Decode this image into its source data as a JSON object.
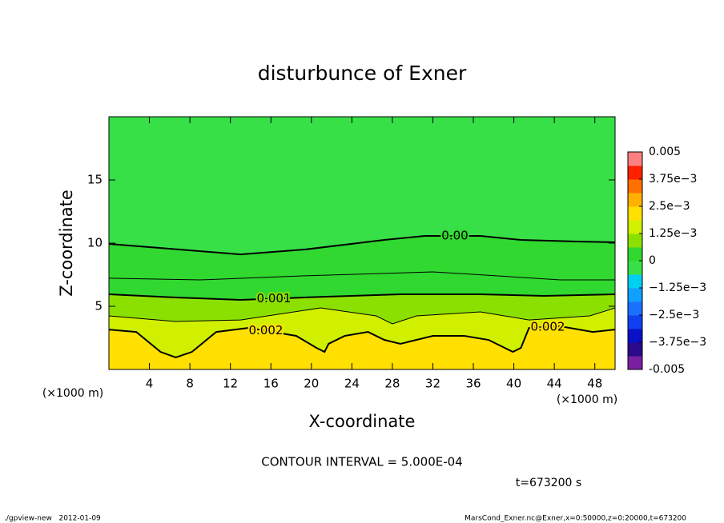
{
  "chart_data": {
    "type": "contour",
    "title": "disturbunce of Exner",
    "xlabel": "X-coordinate",
    "ylabel": "Z-coordinate",
    "x_unit": "(×1000 m)",
    "y_unit": "(×1000 m)",
    "xlim": [
      0,
      50
    ],
    "ylim": [
      0,
      20
    ],
    "xticks": [
      4,
      8,
      12,
      16,
      20,
      24,
      28,
      32,
      36,
      40,
      44,
      48
    ],
    "yticks": [
      5,
      10,
      15
    ],
    "contours": [
      {
        "level": 0,
        "label": "0.00",
        "x": [
          0,
          5,
          13,
          19.3,
          27.2,
          31.2,
          36.7,
          40.7,
          46.2,
          50
        ],
        "y": [
          9.94,
          9.62,
          9.11,
          9.49,
          10.25,
          10.57,
          10.57,
          10.25,
          10.13,
          10.06
        ]
      },
      {
        "level": 0.0005,
        "x": [
          0,
          9,
          19.3,
          32,
          38.3,
          44.6,
          50
        ],
        "y": [
          7.22,
          7.09,
          7.41,
          7.72,
          7.41,
          7.09,
          7.09
        ]
      },
      {
        "level": 0.001,
        "label": "0.001",
        "x": [
          0,
          6.6,
          13,
          19.3,
          28.8,
          36.7,
          43,
          50
        ],
        "y": [
          5.95,
          5.7,
          5.51,
          5.7,
          5.95,
          5.95,
          5.82,
          5.95
        ]
      },
      {
        "level": 0.0015,
        "x": [
          0,
          6.6,
          13,
          20.9,
          26.4,
          28,
          30.4,
          36.7,
          41.5,
          47.5,
          50
        ],
        "y": [
          4.24,
          3.8,
          3.92,
          4.87,
          4.24,
          3.61,
          4.24,
          4.56,
          3.92,
          4.24,
          4.87
        ]
      },
      {
        "level": 0.002,
        "label": "0.002",
        "x": [
          0,
          2.7,
          5.1,
          6.6,
          8.2,
          10.6,
          13.8,
          18.5,
          20.5,
          21.3,
          21.7,
          23.3,
          25.6,
          27.2,
          28.8,
          32,
          35.1,
          37.5,
          39.9,
          40.7,
          41.5,
          44.6,
          47.8,
          50
        ],
        "y": [
          3.16,
          2.97,
          1.39,
          0.95,
          1.39,
          2.97,
          3.29,
          2.66,
          1.71,
          1.39,
          2.03,
          2.66,
          2.97,
          2.34,
          2.03,
          2.66,
          2.66,
          2.34,
          1.39,
          1.71,
          3.29,
          3.42,
          2.97,
          3.16
        ]
      }
    ],
    "colorbar": {
      "clim": [
        -0.005,
        0.005
      ],
      "colors": [
        "#7a1fa0",
        "#2a0a8a",
        "#0a10c8",
        "#1040f0",
        "#1a70ff",
        "#10a0ff",
        "#00d0f0",
        "#38e048",
        "#30d830",
        "#8ce000",
        "#d0f000",
        "#ffe000",
        "#ffb000",
        "#ff7000",
        "#ff2000",
        "#ff8080"
      ],
      "ticks": [
        -0.005,
        {
          "value": -0.00375,
          "label": "−3.75e−3"
        },
        {
          "value": -0.0025,
          "label": "−2.5e−3"
        },
        {
          "value": -0.00125,
          "label": "−1.25e−3"
        },
        0,
        {
          "value": 0.00125,
          "label": "1.25e−3"
        },
        {
          "value": 0.0025,
          "label": "2.5e−3"
        },
        {
          "value": 0.00375,
          "label": "3.75e−3"
        },
        0.005
      ]
    },
    "contour_interval_text": "CONTOUR INTERVAL = 5.000E-04",
    "time_text": "t=673200 s"
  },
  "footer": {
    "left": "./gpview-new   2012-01-09",
    "right": "MarsCond_Exner.nc@Exner,x=0:50000,z=0:20000,t=673200"
  }
}
